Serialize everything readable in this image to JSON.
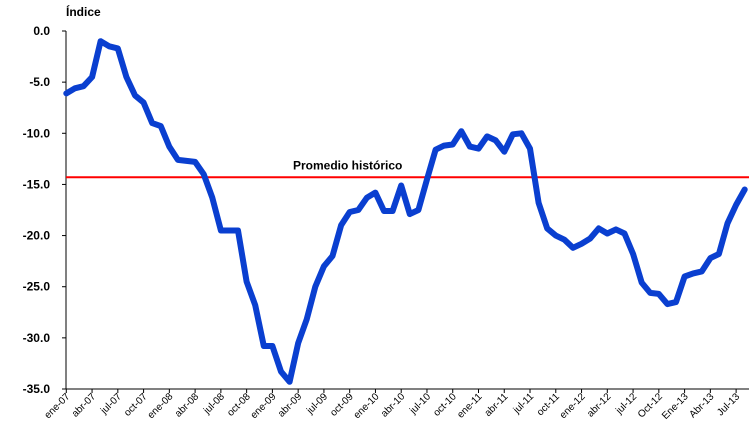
{
  "chart_data": {
    "type": "line",
    "y_label": "Índice",
    "categories": [
      "ene-07",
      null,
      null,
      "abr-07",
      null,
      null,
      "jul-07",
      null,
      null,
      "oct-07",
      null,
      null,
      "ene-08",
      null,
      null,
      "abr-08",
      null,
      null,
      "jul-08",
      null,
      null,
      "oct-08",
      null,
      null,
      "ene-09",
      null,
      null,
      "abr-09",
      null,
      null,
      "jul-09",
      null,
      null,
      "oct-09",
      null,
      null,
      "ene-10",
      null,
      null,
      "abr-10",
      null,
      null,
      "jul-10",
      null,
      null,
      "oct-10",
      null,
      null,
      "ene-11",
      null,
      null,
      "abr-11",
      null,
      null,
      "jul-11",
      null,
      null,
      "oct-11",
      null,
      null,
      "ene-12",
      null,
      null,
      "abr-12",
      null,
      null,
      "jul-12",
      null,
      null,
      "Oct-12",
      null,
      null,
      "Ene-13",
      null,
      null,
      "Abr-13",
      null,
      null,
      "Jul-13",
      null
    ],
    "values": [
      -6.1,
      -5.6,
      -5.4,
      -4.5,
      -1.0,
      -1.5,
      -1.7,
      -4.5,
      -6.3,
      -7.0,
      -9.0,
      -9.3,
      -11.3,
      -12.6,
      -12.7,
      -12.8,
      -14.0,
      -16.3,
      -19.5,
      -19.5,
      -19.5,
      -24.5,
      -26.8,
      -30.8,
      -30.8,
      -33.3,
      -34.3,
      -30.5,
      -28.2,
      -25.0,
      -23.0,
      -22.0,
      -19.0,
      -17.7,
      -17.5,
      -16.3,
      -15.8,
      -17.6,
      -17.6,
      -15.1,
      -17.9,
      -17.5,
      -14.5,
      -11.6,
      -11.2,
      -11.1,
      -9.8,
      -11.3,
      -11.5,
      -10.3,
      -10.7,
      -11.8,
      -10.1,
      -10.0,
      -11.5,
      -16.8,
      -19.3,
      -20.0,
      -20.4,
      -21.2,
      -20.8,
      -20.3,
      -19.3,
      -19.8,
      -19.4,
      -19.8,
      -21.8,
      -24.6,
      -25.6,
      -25.7,
      -26.7,
      -26.5,
      -24.0,
      -23.7,
      -23.5,
      -22.2,
      -21.8,
      -18.8,
      -17.0,
      -15.5
    ],
    "color": "#0a3fd0",
    "ylim": [
      -35,
      0
    ],
    "yticks": [
      {
        "value": 0,
        "label": "0.0"
      },
      {
        "value": -5,
        "label": "-5.0"
      },
      {
        "value": -10,
        "label": "-10.0"
      },
      {
        "value": -15,
        "label": "-15.0"
      },
      {
        "value": -20,
        "label": "-20.0"
      },
      {
        "value": -25,
        "label": "-25.0"
      },
      {
        "value": -30,
        "label": "-30.0"
      },
      {
        "value": -35,
        "label": "-35.0"
      }
    ],
    "reference_line": {
      "value": -14.3,
      "label": "Promedio histórico",
      "color": "#ff0000"
    }
  }
}
